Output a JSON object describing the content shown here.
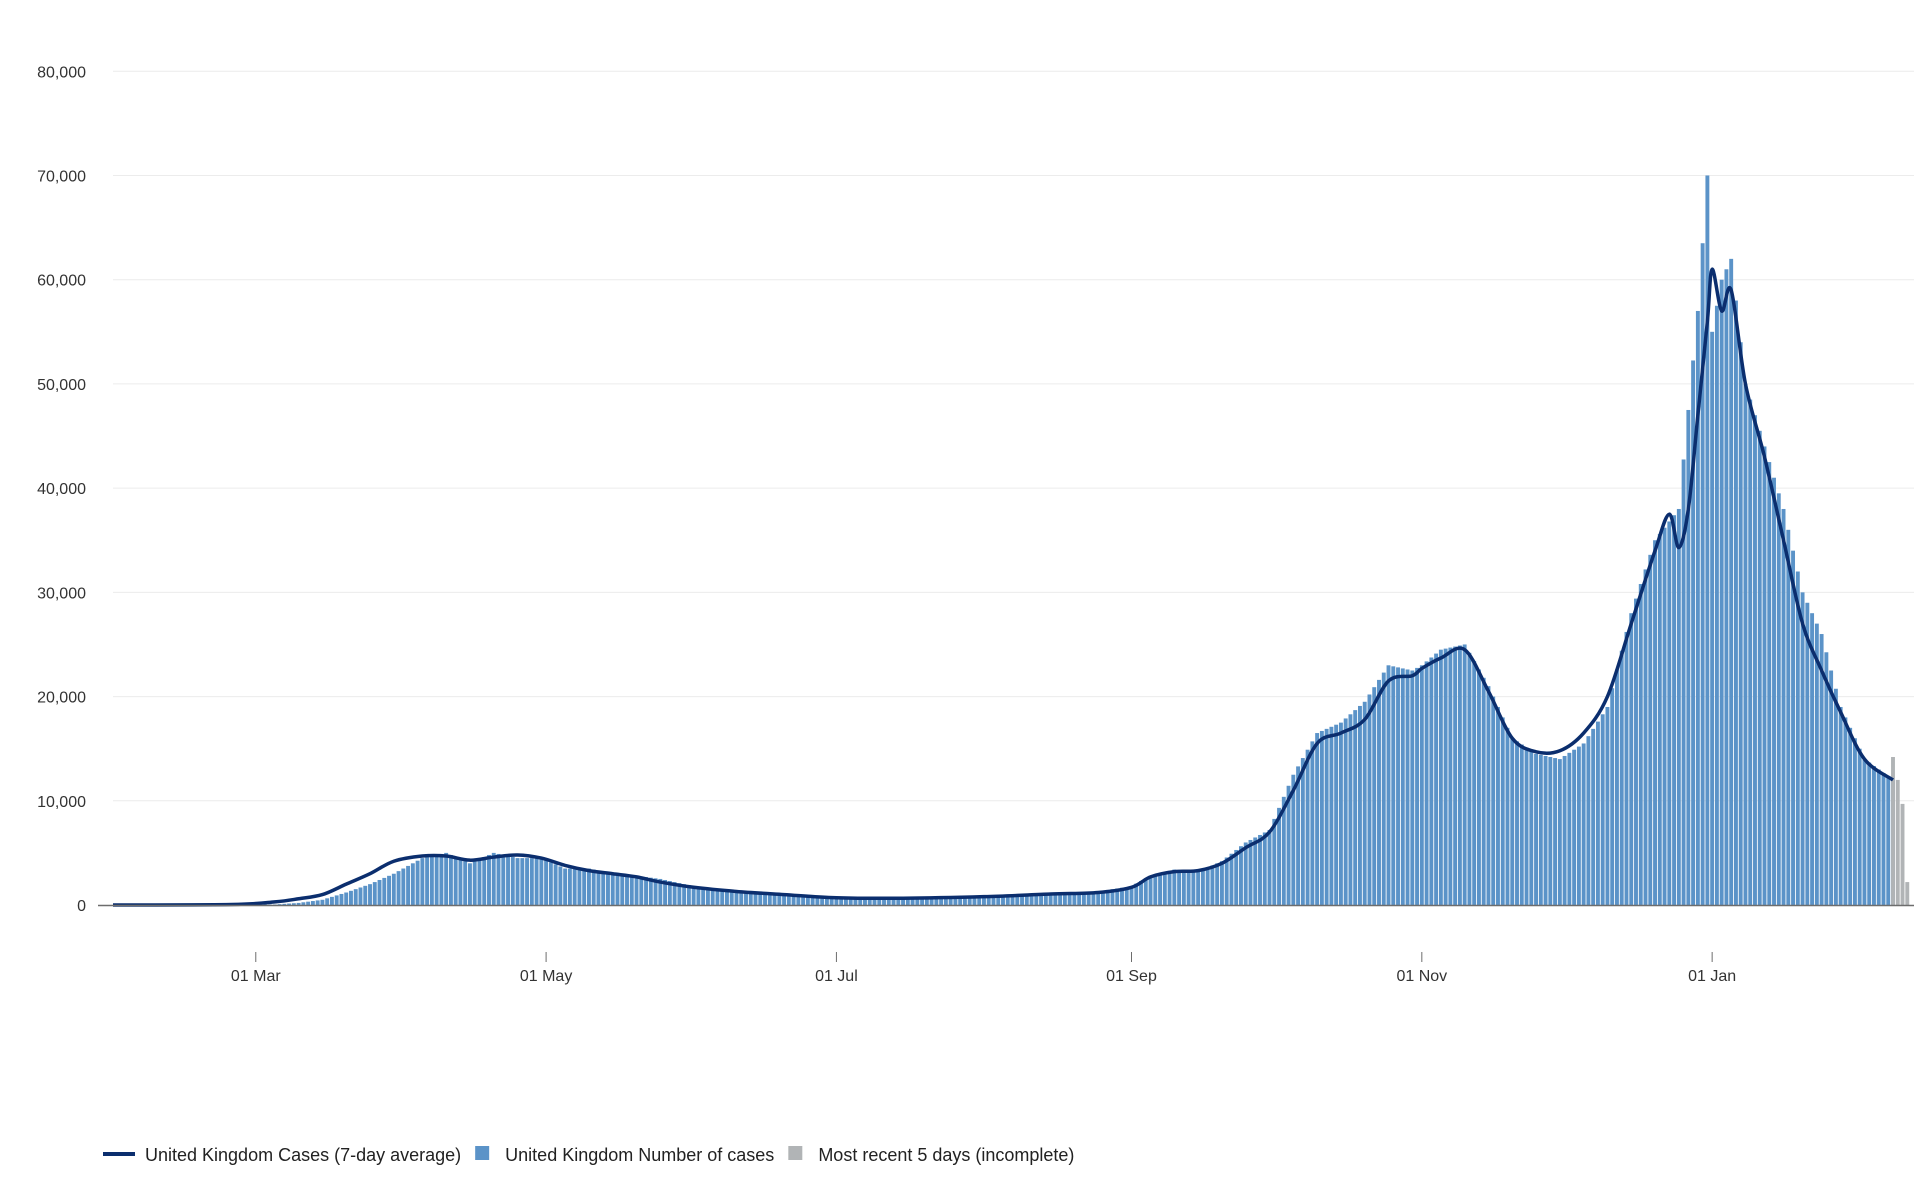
{
  "chart_data": {
    "type": "bar",
    "x_start": "2020-01-31",
    "x_end": "2021-02-08",
    "x_ticks": [
      {
        "date": "2020-03-01",
        "label": "01 Mar"
      },
      {
        "date": "2020-05-01",
        "label": "01 May"
      },
      {
        "date": "2020-07-01",
        "label": "01 Jul"
      },
      {
        "date": "2020-09-01",
        "label": "01 Sep"
      },
      {
        "date": "2020-11-01",
        "label": "01 Nov"
      },
      {
        "date": "2021-01-01",
        "label": "01 Jan"
      }
    ],
    "y_ticks": [
      {
        "value": 0,
        "label": "0"
      },
      {
        "value": 10000,
        "label": "10,000"
      },
      {
        "value": 20000,
        "label": "20,000"
      },
      {
        "value": 30000,
        "label": "30,000"
      },
      {
        "value": 40000,
        "label": "40,000"
      },
      {
        "value": 50000,
        "label": "50,000"
      },
      {
        "value": 60000,
        "label": "60,000"
      },
      {
        "value": 70000,
        "label": "70,000"
      },
      {
        "value": 80000,
        "label": "80,000"
      }
    ],
    "ylim": [
      0,
      83000
    ],
    "grid": "horizontal",
    "legend_position": "bottom-left",
    "series": [
      {
        "name": "United Kingdom Number of cases",
        "kind": "bar",
        "color": "#5b93c8",
        "points": [
          [
            "2020-02-25",
            20
          ],
          [
            "2020-03-05",
            50
          ],
          [
            "2020-03-10",
            200
          ],
          [
            "2020-03-15",
            500
          ],
          [
            "2020-03-20",
            1200
          ],
          [
            "2020-03-25",
            2000
          ],
          [
            "2020-03-30",
            3000
          ],
          [
            "2020-04-05",
            4500
          ],
          [
            "2020-04-10",
            5000
          ],
          [
            "2020-04-15",
            4000
          ],
          [
            "2020-04-20",
            5000
          ],
          [
            "2020-04-25",
            4500
          ],
          [
            "2020-04-30",
            4500
          ],
          [
            "2020-05-05",
            3500
          ],
          [
            "2020-05-10",
            3500
          ],
          [
            "2020-05-15",
            3000
          ],
          [
            "2020-05-20",
            2800
          ],
          [
            "2020-05-25",
            2500
          ],
          [
            "2020-06-01",
            1800
          ],
          [
            "2020-06-10",
            1200
          ],
          [
            "2020-06-20",
            1000
          ],
          [
            "2020-07-01",
            700
          ],
          [
            "2020-07-15",
            650
          ],
          [
            "2020-08-01",
            800
          ],
          [
            "2020-08-15",
            1100
          ],
          [
            "2020-08-25",
            1300
          ],
          [
            "2020-09-01",
            1800
          ],
          [
            "2020-09-05",
            2800
          ],
          [
            "2020-09-10",
            3400
          ],
          [
            "2020-09-15",
            3200
          ],
          [
            "2020-09-20",
            4200
          ],
          [
            "2020-09-25",
            6000
          ],
          [
            "2020-09-30",
            7200
          ],
          [
            "2020-10-05",
            12500
          ],
          [
            "2020-10-10",
            16500
          ],
          [
            "2020-10-15",
            17500
          ],
          [
            "2020-10-20",
            19500
          ],
          [
            "2020-10-25",
            23000
          ],
          [
            "2020-10-30",
            22500
          ],
          [
            "2020-11-01",
            23000
          ],
          [
            "2020-11-05",
            24500
          ],
          [
            "2020-11-10",
            25000
          ],
          [
            "2020-11-15",
            21000
          ],
          [
            "2020-11-20",
            16000
          ],
          [
            "2020-11-25",
            14500
          ],
          [
            "2020-11-30",
            14000
          ],
          [
            "2020-12-05",
            15500
          ],
          [
            "2020-12-10",
            19000
          ],
          [
            "2020-12-15",
            28000
          ],
          [
            "2020-12-20",
            35000
          ],
          [
            "2020-12-25",
            38000
          ],
          [
            "2020-12-29",
            57000
          ],
          [
            "2020-12-31",
            70000
          ],
          [
            "2021-01-01",
            55000
          ],
          [
            "2021-01-03",
            60000
          ],
          [
            "2021-01-05",
            62000
          ],
          [
            "2021-01-08",
            50000
          ],
          [
            "2021-01-12",
            44000
          ],
          [
            "2021-01-16",
            38000
          ],
          [
            "2021-01-20",
            30000
          ],
          [
            "2021-01-24",
            26000
          ],
          [
            "2021-01-28",
            19000
          ],
          [
            "2021-02-02",
            14000
          ],
          [
            "2021-02-08",
            12000
          ]
        ]
      },
      {
        "name": "Most recent 5 days (incomplete)",
        "kind": "bar",
        "color": "#b1b4b6",
        "points": [
          [
            "2021-02-08",
            14200
          ],
          [
            "2021-02-09",
            12000
          ],
          [
            "2021-02-10",
            9700
          ],
          [
            "2021-02-11",
            2200
          ]
        ]
      },
      {
        "name": "United Kingdom Cases (7-day average)",
        "kind": "line",
        "color": "#0b2e6e",
        "points": [
          [
            "2020-01-31",
            0
          ],
          [
            "2020-02-25",
            50
          ],
          [
            "2020-03-05",
            300
          ],
          [
            "2020-03-10",
            600
          ],
          [
            "2020-03-15",
            1000
          ],
          [
            "2020-03-20",
            2000
          ],
          [
            "2020-03-25",
            3000
          ],
          [
            "2020-03-30",
            4200
          ],
          [
            "2020-04-05",
            4700
          ],
          [
            "2020-04-10",
            4700
          ],
          [
            "2020-04-15",
            4300
          ],
          [
            "2020-04-20",
            4600
          ],
          [
            "2020-04-25",
            4800
          ],
          [
            "2020-04-30",
            4500
          ],
          [
            "2020-05-05",
            3800
          ],
          [
            "2020-05-10",
            3300
          ],
          [
            "2020-05-15",
            3000
          ],
          [
            "2020-05-20",
            2700
          ],
          [
            "2020-05-25",
            2200
          ],
          [
            "2020-06-01",
            1700
          ],
          [
            "2020-06-10",
            1300
          ],
          [
            "2020-06-20",
            1000
          ],
          [
            "2020-07-01",
            700
          ],
          [
            "2020-07-15",
            650
          ],
          [
            "2020-08-01",
            800
          ],
          [
            "2020-08-15",
            1050
          ],
          [
            "2020-08-25",
            1200
          ],
          [
            "2020-09-01",
            1700
          ],
          [
            "2020-09-05",
            2700
          ],
          [
            "2020-09-10",
            3200
          ],
          [
            "2020-09-15",
            3300
          ],
          [
            "2020-09-20",
            4000
          ],
          [
            "2020-09-25",
            5500
          ],
          [
            "2020-09-30",
            7000
          ],
          [
            "2020-10-05",
            11000
          ],
          [
            "2020-10-10",
            15500
          ],
          [
            "2020-10-15",
            16500
          ],
          [
            "2020-10-20",
            17800
          ],
          [
            "2020-10-25",
            21500
          ],
          [
            "2020-10-30",
            22000
          ],
          [
            "2020-11-01",
            22700
          ],
          [
            "2020-11-05",
            23700
          ],
          [
            "2020-11-10",
            24500
          ],
          [
            "2020-11-15",
            20500
          ],
          [
            "2020-11-20",
            16000
          ],
          [
            "2020-11-25",
            14700
          ],
          [
            "2020-11-30",
            14800
          ],
          [
            "2020-12-05",
            16500
          ],
          [
            "2020-12-10",
            20000
          ],
          [
            "2020-12-15",
            27000
          ],
          [
            "2020-12-20",
            34000
          ],
          [
            "2020-12-23",
            37500
          ],
          [
            "2020-12-25",
            34300
          ],
          [
            "2020-12-27",
            38000
          ],
          [
            "2020-12-29",
            47000
          ],
          [
            "2020-12-31",
            56000
          ],
          [
            "2021-01-01",
            61000
          ],
          [
            "2021-01-03",
            57000
          ],
          [
            "2021-01-05",
            59000
          ],
          [
            "2021-01-08",
            50000
          ],
          [
            "2021-01-12",
            43000
          ],
          [
            "2021-01-16",
            35000
          ],
          [
            "2021-01-20",
            27000
          ],
          [
            "2021-01-24",
            22500
          ],
          [
            "2021-01-28",
            18500
          ],
          [
            "2021-02-02",
            14000
          ],
          [
            "2021-02-08",
            12000
          ]
        ]
      }
    ]
  }
}
